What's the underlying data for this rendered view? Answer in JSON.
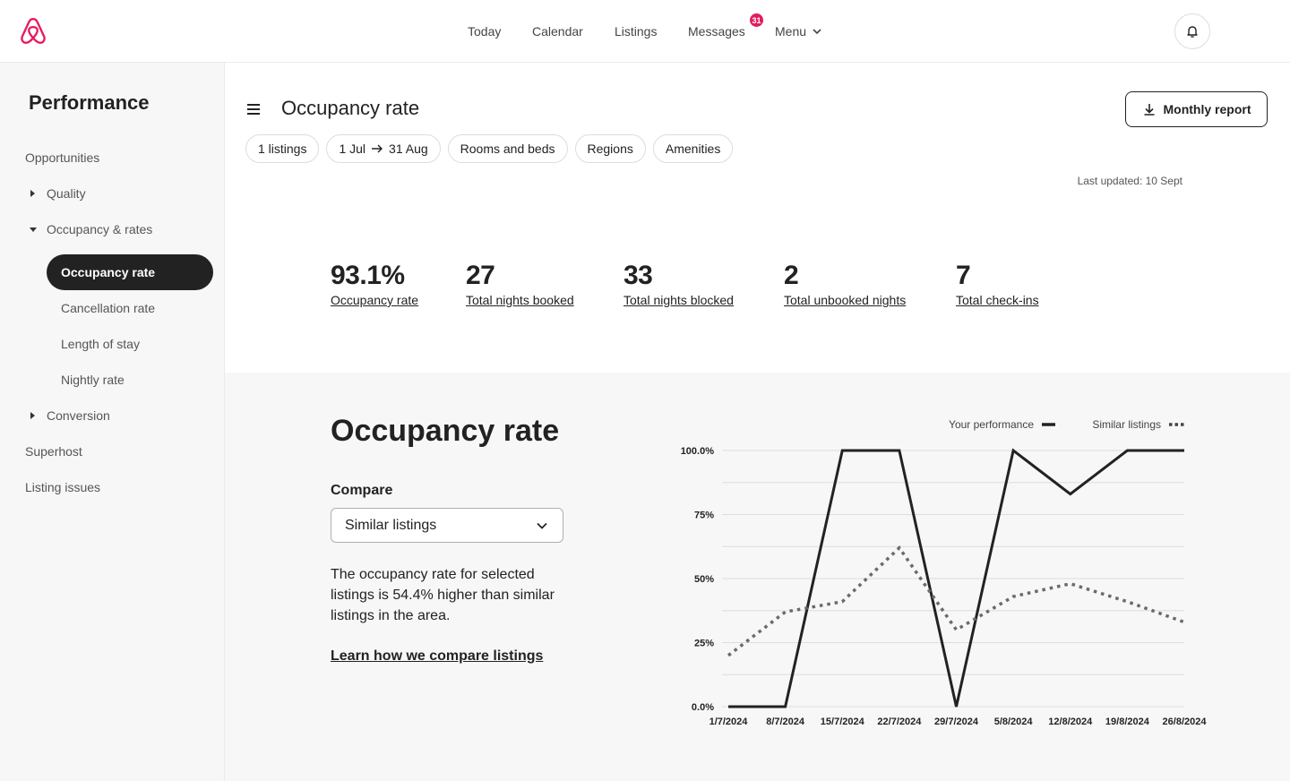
{
  "header": {
    "logo_icon": "airbnb-logo-icon",
    "nav": {
      "today": "Today",
      "calendar": "Calendar",
      "listings": "Listings",
      "messages": "Messages",
      "messages_badge": "31",
      "menu": "Menu"
    },
    "bell_icon": "bell-icon",
    "accent_color": "#e31c5f"
  },
  "sidebar": {
    "title": "Performance",
    "items": {
      "opportunities": "Opportunities",
      "quality": "Quality",
      "occupancy_rates": "Occupancy & rates",
      "occupancy_rate": "Occupancy rate",
      "cancellation_rate": "Cancellation rate",
      "length_of_stay": "Length of stay",
      "nightly_rate": "Nightly rate",
      "conversion": "Conversion",
      "superhost": "Superhost",
      "listing_issues": "Listing issues"
    }
  },
  "main": {
    "title": "Occupancy rate",
    "report_button": "Monthly report",
    "filters": {
      "listings": "1 listings",
      "date_from": "1 Jul",
      "date_to": "31 Aug",
      "rooms": "Rooms and beds",
      "regions": "Regions",
      "amenities": "Amenities"
    },
    "last_updated": "Last updated: 10 Sept",
    "stats": [
      {
        "value": "93.1%",
        "label": "Occupancy rate"
      },
      {
        "value": "27",
        "label": "Total nights booked"
      },
      {
        "value": "33",
        "label": "Total nights blocked"
      },
      {
        "value": "2",
        "label": "Total unbooked nights"
      },
      {
        "value": "7",
        "label": "Total check-ins"
      }
    ],
    "panel": {
      "title": "Occupancy rate",
      "compare_label": "Compare",
      "compare_value": "Similar listings",
      "description": "The occupancy rate for selected listings is 54.4% higher than similar listings in the area.",
      "learn_link": "Learn how we compare listings"
    }
  },
  "chart_data": {
    "type": "line",
    "x": [
      "1/7/2024",
      "8/7/2024",
      "15/7/2024",
      "22/7/2024",
      "29/7/2024",
      "5/8/2024",
      "12/8/2024",
      "19/8/2024",
      "26/8/2024"
    ],
    "y_ticks": [
      "0.0%",
      "25%",
      "50%",
      "75%",
      "100.0%"
    ],
    "ylim": [
      0,
      100
    ],
    "grid": true,
    "legend_position": "top-right",
    "series": [
      {
        "name": "Your performance",
        "style": "solid",
        "color": "#222222",
        "points": [
          [
            0,
            0
          ],
          [
            1,
            0
          ],
          [
            2,
            100
          ],
          [
            3,
            100
          ],
          [
            4,
            0
          ],
          [
            5,
            100
          ],
          [
            6,
            83
          ],
          [
            7,
            100
          ],
          [
            8,
            100
          ]
        ]
      },
      {
        "name": "Similar listings",
        "style": "dotted",
        "color": "#6a6a6a",
        "points": [
          [
            0,
            20
          ],
          [
            1,
            37
          ],
          [
            2,
            41
          ],
          [
            3,
            62
          ],
          [
            4,
            30
          ],
          [
            5,
            43
          ],
          [
            6,
            48
          ],
          [
            7,
            41
          ],
          [
            8,
            33
          ]
        ]
      }
    ]
  }
}
